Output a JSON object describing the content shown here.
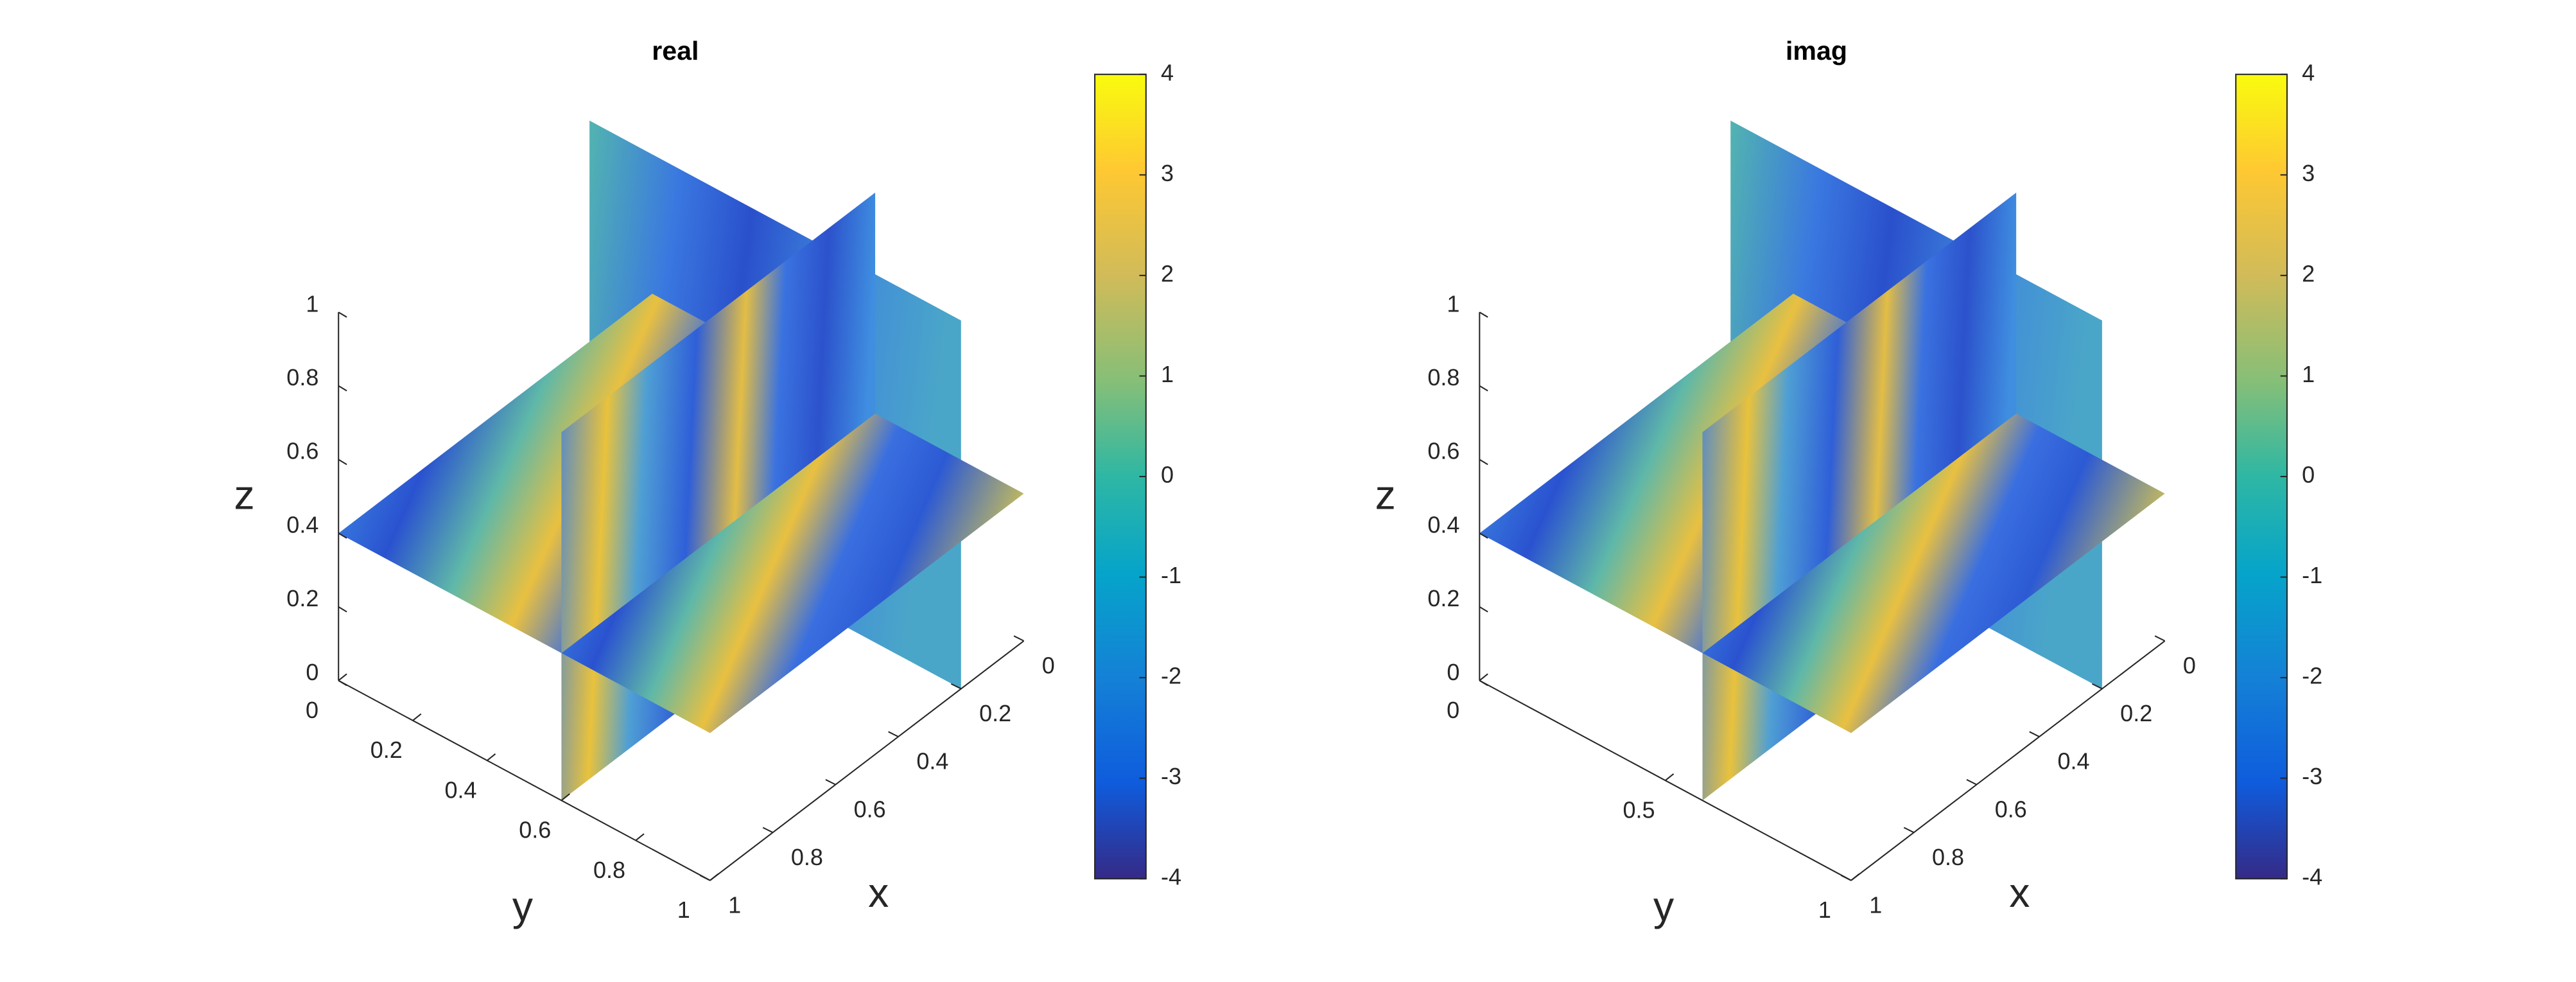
{
  "chart_data": [
    {
      "type": "slice3d",
      "title": "real",
      "xlabel": "x",
      "ylabel": "y",
      "zlabel": "z",
      "xlim": [
        0,
        1
      ],
      "xticks": [
        0,
        0.2,
        0.4,
        0.6,
        0.8,
        1
      ],
      "ylim": [
        0,
        1
      ],
      "yticks": [
        0,
        0.2,
        0.4,
        0.6,
        0.8,
        1
      ],
      "zlim": [
        0,
        1
      ],
      "zticks": [
        0,
        0.2,
        0.4,
        0.6,
        0.8,
        1
      ],
      "colorbar": {
        "lim": [
          -4,
          4
        ],
        "ticks": [
          -4,
          -3,
          -2,
          -1,
          0,
          1,
          2,
          3,
          4
        ]
      }
    },
    {
      "type": "slice3d",
      "title": "imag",
      "xlabel": "x",
      "ylabel": "y",
      "zlabel": "z",
      "xlim": [
        0,
        1
      ],
      "xticks": [
        0,
        0.2,
        0.4,
        0.6,
        0.8,
        1
      ],
      "ylim": [
        0,
        1
      ],
      "yticks": [
        0,
        0.5,
        1
      ],
      "zlim": [
        0,
        1
      ],
      "zticks": [
        0,
        0.2,
        0.4,
        0.6,
        0.8,
        1
      ],
      "colorbar": {
        "lim": [
          -4,
          4
        ],
        "ticks": [
          -4,
          -3,
          -2,
          -1,
          0,
          1,
          2,
          3,
          4
        ]
      }
    }
  ]
}
